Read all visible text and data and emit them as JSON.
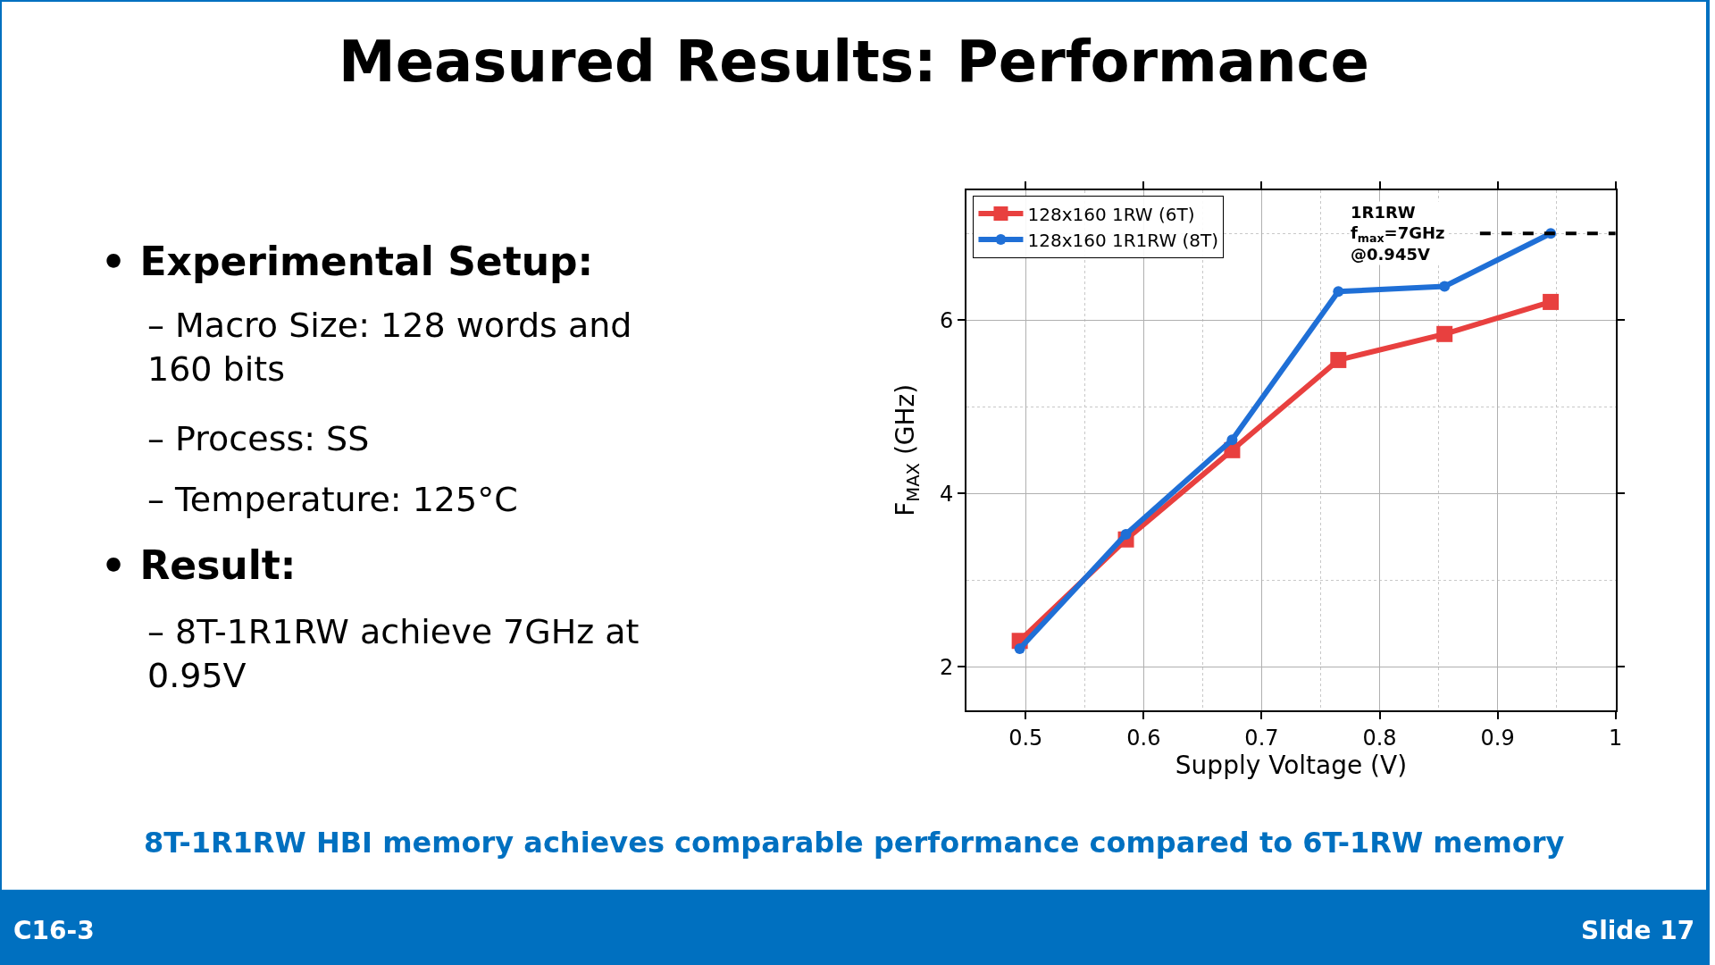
{
  "chart_data": {
    "type": "line",
    "title": "Measured Results: Performance",
    "xlabel": "Supply Voltage (V)",
    "ylabel": "F$_{MAX}$ (GHz)",
    "x": [
      0.495,
      0.585,
      0.675,
      0.765,
      0.855,
      0.945
    ],
    "series": [
      {
        "name": "128x160 1RW (6T)",
        "color": "#e8403f",
        "marker": "square",
        "values": [
          2.3,
          3.47,
          4.5,
          5.54,
          5.84,
          6.21
        ]
      },
      {
        "name": "128x160 1R1RW (8T)",
        "color": "#1f6fd6",
        "marker": "circle",
        "values": [
          2.21,
          3.53,
          4.62,
          6.33,
          6.39,
          7.0
        ]
      },
      {
        "color": "#000000",
        "marker": "none",
        "line_style": "dashed",
        "x": [
          0.885,
          1.0
        ],
        "values": [
          7.0,
          7.0
        ]
      }
    ],
    "xlim": [
      0.45,
      1.0
    ],
    "xticks": [
      0.5,
      0.6,
      0.7,
      0.8,
      0.9,
      1
    ],
    "ylim": [
      1.5,
      7.5
    ],
    "yticks": [
      2,
      4,
      6
    ],
    "grid": true,
    "legend": "top left",
    "annotations": [
      "1R1RW\nf$_{max}$=7GHz\n@0.945V",
      "• Experimental Setup:",
      "– Macro Size: 128 words and 160 bits",
      "– Process: SS",
      "– Temperature: 125°C",
      "• Result:",
      "– 8T-1R1RW achieve 7GHz at 0.95V",
      "8T-1R1RW HBI memory achieves comparable performance compared to 6T-1RW memory",
      "C16-3",
      "Slide 17"
    ]
  }
}
